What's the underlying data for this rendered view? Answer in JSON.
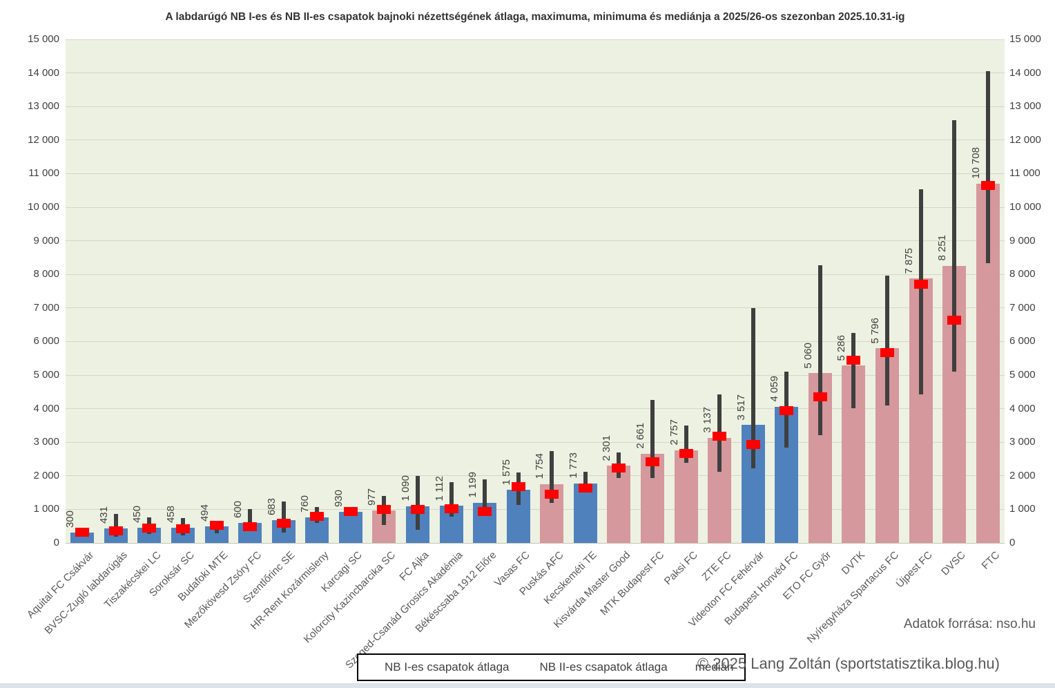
{
  "title": "A labdarúgó NB I-es és NB II-es csapatok bajnoki nézettségének átlaga, maximuma, minimuma és mediánja a 2025/26-os szezonban 2025.10.31-ig",
  "footer": {
    "source": "Adatok forrása: nso.hu",
    "copyright": "© 2025  Lang Zoltán (sportstatisztika.blog.hu)"
  },
  "legend": {
    "items": [
      {
        "label": "NB I-es csapatok átlaga",
        "color": "#d5989c"
      },
      {
        "label": "NB II-es csapatok átlaga",
        "color": "#4f81bd"
      },
      {
        "label": "medián",
        "color": "#ff0000"
      }
    ]
  },
  "colors": {
    "nb1_bar": "#d5989c",
    "nb2_bar": "#4f81bd",
    "median": "#ff0000",
    "error_bar": "#3f3f3f",
    "plot_background": "#edf1e1",
    "gridline": "#d4d6c8"
  },
  "chart_data": {
    "type": "bar",
    "title": "A labdarúgó NB I-es és NB II-es csapatok bajnoki nézettségének átlaga, maximuma, minimuma és mediánja a 2025/26-os szezonban 2025.10.31-ig",
    "xlabel": "",
    "ylabel": "",
    "ylim": [
      0,
      15000
    ],
    "ytick_step": 1000,
    "grid": true,
    "legend_position": "bottom",
    "series_note": "avg = bar height, whisker = min..max, red marker = median; league decides bar color",
    "teams": [
      {
        "name": "Aquital FC Csákvár",
        "league": "NB II",
        "avg": 300,
        "min": 230,
        "max": 390,
        "median": 310
      },
      {
        "name": "BVSC-Zugló labdarúgás",
        "league": "NB II",
        "avg": 431,
        "min": 180,
        "max": 870,
        "median": 350
      },
      {
        "name": "Tiszakécskei LC",
        "league": "NB II",
        "avg": 450,
        "min": 260,
        "max": 760,
        "median": 440
      },
      {
        "name": "Soroksár SC",
        "league": "NB II",
        "avg": 458,
        "min": 220,
        "max": 740,
        "median": 420
      },
      {
        "name": "Budafoki MTE",
        "league": "NB II",
        "avg": 494,
        "min": 280,
        "max": 590,
        "median": 530
      },
      {
        "name": "Mezőkövesd Zsóry FC",
        "league": "NB II",
        "avg": 600,
        "min": 380,
        "max": 1000,
        "median": 490
      },
      {
        "name": "Szentlőrinc SE",
        "league": "NB II",
        "avg": 683,
        "min": 300,
        "max": 1230,
        "median": 580
      },
      {
        "name": "HR-Rent Kozármisleny",
        "league": "NB II",
        "avg": 760,
        "min": 590,
        "max": 1060,
        "median": 800
      },
      {
        "name": "Karcagi SC",
        "league": "NB II",
        "avg": 930,
        "min": 850,
        "max": 990,
        "median": 940
      },
      {
        "name": "Kolorcity Kazincbarcika SC",
        "league": "NB I",
        "avg": 977,
        "min": 530,
        "max": 1390,
        "median": 1000
      },
      {
        "name": "FC Ajka",
        "league": "NB II",
        "avg": 1090,
        "min": 390,
        "max": 2000,
        "median": 990
      },
      {
        "name": "Szeged-Csanád Grosics Akadémia",
        "league": "NB II",
        "avg": 1112,
        "min": 780,
        "max": 1810,
        "median": 1020
      },
      {
        "name": "Békéscsaba 1912 Előre",
        "league": "NB II",
        "avg": 1199,
        "min": 820,
        "max": 1900,
        "median": 945
      },
      {
        "name": "Vasas FC",
        "league": "NB II",
        "avg": 1575,
        "min": 1140,
        "max": 2100,
        "median": 1670
      },
      {
        "name": "Puskás AFC",
        "league": "NB I",
        "avg": 1754,
        "min": 1190,
        "max": 2740,
        "median": 1450
      },
      {
        "name": "Kecskeméti TE",
        "league": "NB II",
        "avg": 1773,
        "min": 1560,
        "max": 2110,
        "median": 1630
      },
      {
        "name": "Kisvárda Master Good",
        "league": "NB I",
        "avg": 2301,
        "min": 1930,
        "max": 2690,
        "median": 2240
      },
      {
        "name": "MTK Budapest FC",
        "league": "NB I",
        "avg": 2661,
        "min": 1930,
        "max": 4260,
        "median": 2410
      },
      {
        "name": "Paksi FC",
        "league": "NB I",
        "avg": 2757,
        "min": 2390,
        "max": 3490,
        "median": 2660
      },
      {
        "name": "ZTE FC",
        "league": "NB I",
        "avg": 3137,
        "min": 2120,
        "max": 4430,
        "median": 3170
      },
      {
        "name": "Videoton FC Fehérvár",
        "league": "NB II",
        "avg": 3517,
        "min": 2230,
        "max": 7000,
        "median": 2930
      },
      {
        "name": "Budapest Honvéd FC",
        "league": "NB II",
        "avg": 4059,
        "min": 2840,
        "max": 5100,
        "median": 3950
      },
      {
        "name": "ETO FC Győr",
        "league": "NB I",
        "avg": 5060,
        "min": 3200,
        "max": 8270,
        "median": 4350
      },
      {
        "name": "DVTK",
        "league": "NB I",
        "avg": 5286,
        "min": 4020,
        "max": 6260,
        "median": 5450
      },
      {
        "name": "Nyíregyháza Spartacus FC",
        "league": "NB I",
        "avg": 5796,
        "min": 4100,
        "max": 7960,
        "median": 5660
      },
      {
        "name": "Újpest FC",
        "league": "NB I",
        "avg": 7875,
        "min": 4430,
        "max": 10540,
        "median": 7700
      },
      {
        "name": "DVSC",
        "league": "NB I",
        "avg": 8251,
        "min": 5110,
        "max": 12590,
        "median": 6630
      },
      {
        "name": "FTC",
        "league": "NB I",
        "avg": 10708,
        "min": 8340,
        "max": 14050,
        "median": 10650
      }
    ]
  }
}
